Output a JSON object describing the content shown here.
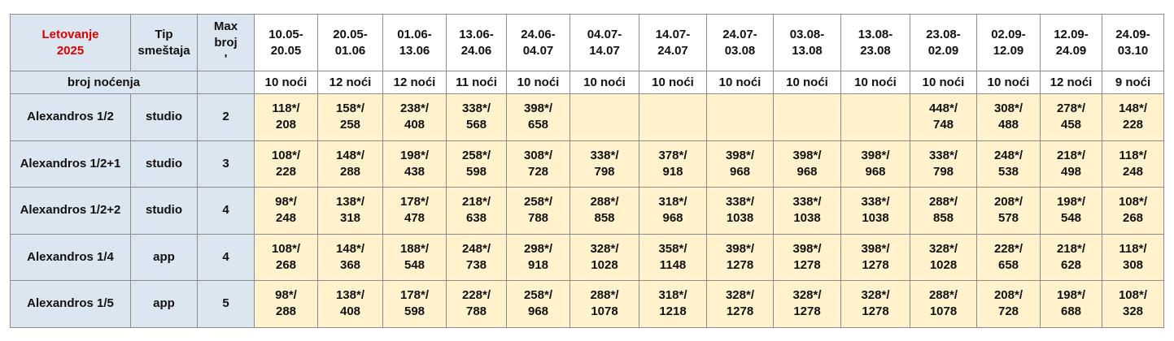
{
  "header": {
    "title": "Letovanje\n2025",
    "type_label": "Tip\nsmeštaja",
    "max_label": "Max\nbroj\n'",
    "periods": [
      "10.05-\n20.05",
      "20.05-\n01.06",
      "01.06-\n13.06",
      "13.06-\n24.06",
      "24.06-\n04.07",
      "04.07-\n14.07",
      "14.07-\n24.07",
      "24.07-\n03.08",
      "03.08-\n13.08",
      "13.08-\n23.08",
      "23.08-\n02.09",
      "02.09-\n12.09",
      "12.09-\n24.09",
      "24.09-\n03.10"
    ]
  },
  "nights_row": {
    "label": "broj noćenja",
    "nights": [
      "10 noći",
      "12 noći",
      "12 noći",
      "11 noći",
      "10 noći",
      "10 noći",
      "10 noći",
      "10 noći",
      "10 noći",
      "10 noći",
      "10 noći",
      "10 noći",
      "12 noći",
      "9 noći"
    ]
  },
  "rows": [
    {
      "name": "Alexandros 1/2",
      "type": "studio",
      "max": 2,
      "prices": [
        "118*/\n208",
        "158*/\n258",
        "238*/\n408",
        "338*/\n568",
        "398*/\n658",
        null,
        null,
        null,
        null,
        null,
        "448*/\n748",
        "308*/\n488",
        "278*/\n458",
        "148*/\n228"
      ]
    },
    {
      "name": "Alexandros 1/2+1",
      "type": "studio",
      "max": 3,
      "prices": [
        "108*/\n228",
        "148*/\n288",
        "198*/\n438",
        "258*/\n598",
        "308*/\n728",
        "338*/\n798",
        "378*/\n918",
        "398*/\n968",
        "398*/\n968",
        "398*/\n968",
        "338*/\n798",
        "248*/\n538",
        "218*/\n498",
        "118*/\n248"
      ]
    },
    {
      "name": "Alexandros 1/2+2",
      "type": "studio",
      "max": 4,
      "prices": [
        "98*/\n248",
        "138*/\n318",
        "178*/\n478",
        "218*/\n638",
        "258*/\n788",
        "288*/\n858",
        "318*/\n968",
        "338*/\n1038",
        "338*/\n1038",
        "338*/\n1038",
        "288*/\n858",
        "208*/\n578",
        "198*/\n548",
        "108*/\n268"
      ]
    },
    {
      "name": "Alexandros 1/4",
      "type": "app",
      "max": 4,
      "prices": [
        "108*/\n268",
        "148*/\n368",
        "188*/\n548",
        "248*/\n738",
        "298*/\n918",
        "328*/\n1028",
        "358*/\n1148",
        "398*/\n1278",
        "398*/\n1278",
        "398*/\n1278",
        "328*/\n1028",
        "228*/\n658",
        "218*/\n628",
        "118*/\n308"
      ]
    },
    {
      "name": "Alexandros 1/5",
      "type": "app",
      "max": 5,
      "prices": [
        "98*/\n288",
        "138*/\n408",
        "178*/\n598",
        "228*/\n788",
        "258*/\n968",
        "288*/\n1078",
        "318*/\n1218",
        "328*/\n1278",
        "328*/\n1278",
        "328*/\n1278",
        "288*/\n1078",
        "208*/\n728",
        "198*/\n688",
        "108*/\n328"
      ]
    }
  ]
}
